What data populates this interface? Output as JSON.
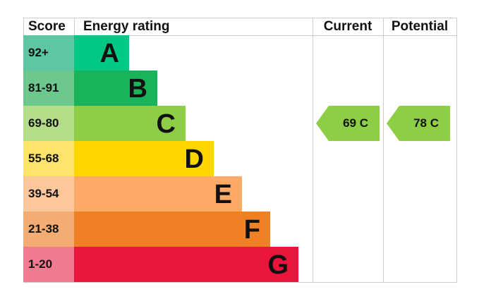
{
  "chart_data": {
    "type": "bar",
    "headers": {
      "score": "Score",
      "rating": "Energy rating",
      "current": "Current",
      "potential": "Potential"
    },
    "bands": [
      {
        "band": "A",
        "score": "92+",
        "color": "#00c781",
        "score_color": "#5ec6a2"
      },
      {
        "band": "B",
        "score": "81-91",
        "color": "#19b459",
        "score_color": "#6cc88d"
      },
      {
        "band": "C",
        "score": "69-80",
        "color": "#8dce46",
        "score_color": "#b4dd8a"
      },
      {
        "band": "D",
        "score": "55-68",
        "color": "#ffd500",
        "score_color": "#ffe36a"
      },
      {
        "band": "E",
        "score": "39-54",
        "color": "#fcaa65",
        "score_color": "#fdc79c"
      },
      {
        "band": "F",
        "score": "21-38",
        "color": "#ef8023",
        "score_color": "#f4ac72"
      },
      {
        "band": "G",
        "score": "1-20",
        "color": "#e9153b",
        "score_color": "#f07a8f"
      }
    ],
    "current": {
      "value": 69,
      "band": "C",
      "label": "69  C",
      "color": "#8dce46"
    },
    "potential": {
      "value": 78,
      "band": "C",
      "label": "78  C",
      "color": "#8dce46"
    }
  }
}
